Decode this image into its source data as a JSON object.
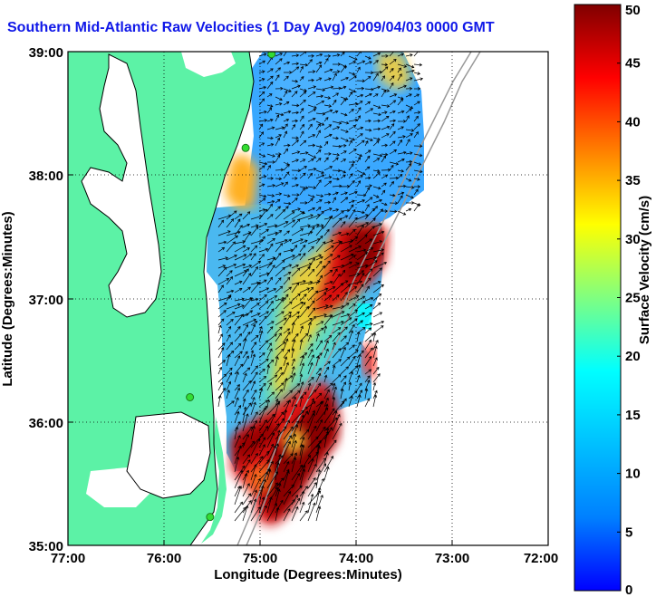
{
  "title": "Southern Mid-Atlantic Raw Velocities (1 Day Avg) 2009/04/03 0000 GMT",
  "x_axis": {
    "label": "Longitude (Degrees:Minutes)",
    "ticks": [
      "77:00",
      "76:00",
      "75:00",
      "74:00",
      "73:00",
      "72:00"
    ]
  },
  "y_axis": {
    "label": "Latitude (Degrees:Minutes)",
    "ticks": [
      "39:00",
      "38:00",
      "37:00",
      "36:00",
      "35:00"
    ]
  },
  "colorbar": {
    "label": "Surface Velocity (cm/s)",
    "ticks": [
      "50",
      "45",
      "40",
      "35",
      "30",
      "25",
      "20",
      "15",
      "10",
      "5",
      "0"
    ],
    "min": 0,
    "max": 50,
    "colormap": "jet"
  },
  "colors": {
    "title": "#1018e8",
    "land": "#5cf2a6",
    "water_background": "#ffffff",
    "station_marker": "#33dd33",
    "isobath": "#999999"
  },
  "stations": [
    {
      "lon": -74.88,
      "lat": 38.98
    },
    {
      "lon": -75.15,
      "lat": 38.22
    },
    {
      "lon": -75.73,
      "lat": 36.2
    },
    {
      "lon": -75.52,
      "lat": 35.23
    }
  ]
}
